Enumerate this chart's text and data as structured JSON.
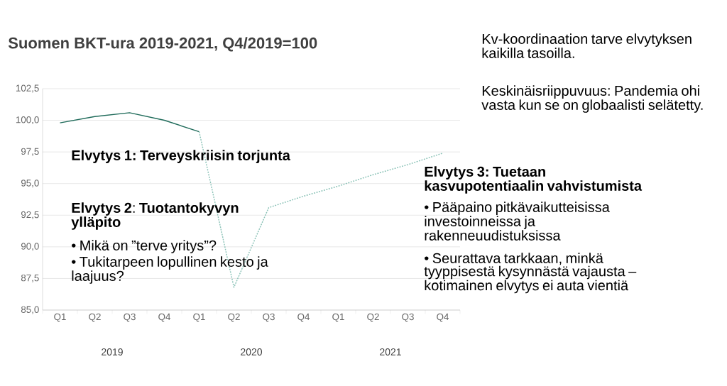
{
  "chart_data": {
    "type": "line",
    "title": "Suomen BKT-ura 2019-2021, Q4/2019=100",
    "categories": [
      "Q1",
      "Q2",
      "Q3",
      "Q4",
      "Q1",
      "Q2",
      "Q3",
      "Q4",
      "Q1",
      "Q2",
      "Q3",
      "Q4"
    ],
    "series": [
      {
        "color": "#1f6b5a",
        "line_style": "solid",
        "values": [
          99.8,
          100.3,
          100.6,
          100.0,
          99.1,
          null,
          null,
          null,
          null,
          null,
          null,
          null
        ]
      },
      {
        "color": "#8cc3b8",
        "line_style": "dotted",
        "values": [
          null,
          null,
          null,
          null,
          99.1,
          86.8,
          93.1,
          94.0,
          94.8,
          95.7,
          96.5,
          97.4
        ]
      }
    ],
    "ylim": [
      85,
      102.5
    ],
    "yticks": [
      {
        "value": 85,
        "label": "85,0"
      },
      {
        "value": 87.5,
        "label": "87,5"
      },
      {
        "value": 90,
        "label": "90,0"
      },
      {
        "value": 92.5,
        "label": "92,5"
      },
      {
        "value": 95,
        "label": "95,0"
      },
      {
        "value": 97.5,
        "label": "97,5"
      },
      {
        "value": 100,
        "label": "100,0"
      },
      {
        "value": 102.5,
        "label": "102,5"
      }
    ],
    "grid": "y",
    "marker": "none",
    "annotations": [
      "Elvytys 1: Terveyskriisin torjunta",
      "**Elvytys 2**: **Tuotantokyvyn ylläpito**",
      "• Mikä on ”terve yritys”?",
      "• Tukitarpeen lopullinen kesto ja laajuus?",
      "Elvytys 3: Tuetaan kasvupotentiaalin vahvistumista",
      "• Pääpaino pitkävaikutteisissa investoinneissa ja rakenneuudistuksissa",
      "• Seurattava tarkkaan, minkä tyyppisestä kysynnästä vajausta – kotimainen elvytys ei auta vientiä",
      "Kv-koordinaation tarve elvytyksen kaikilla tasoilla.",
      "Keskinäisriippuvuus: Pandemia ohi vasta kun se on globaalisti selätetty.",
      "2019",
      "2020",
      "2021"
    ]
  }
}
